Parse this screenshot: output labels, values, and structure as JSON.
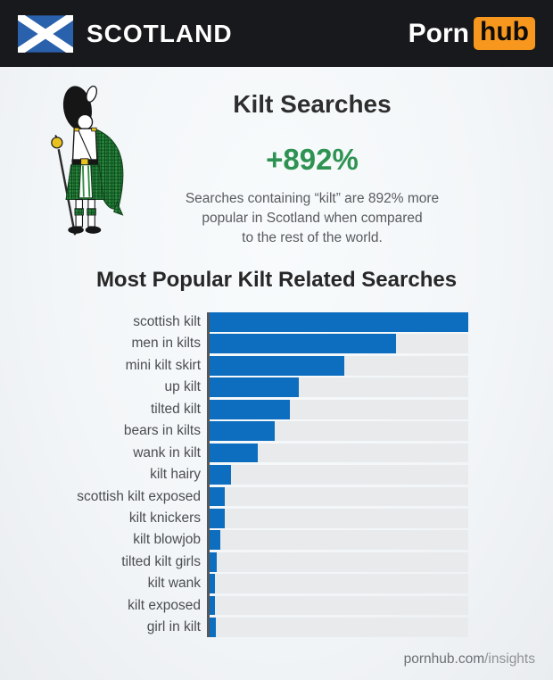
{
  "header": {
    "region": "SCOTLAND",
    "brand_porn": "Porn",
    "brand_hub": "hub"
  },
  "hero": {
    "title": "Kilt Searches",
    "stat": "+892%",
    "description_lines": [
      "Searches containing “kilt” are 892% more",
      "popular in Scotland when compared",
      "to the rest of the world."
    ]
  },
  "chart_heading": "Most Popular Kilt Related Searches",
  "chart_data": {
    "type": "bar",
    "orientation": "horizontal",
    "title": "Most Popular Kilt Related Searches",
    "value_basis": "relative bar length, percent of longest bar (no numeric axis shown)",
    "categories": [
      "scottish kilt",
      "men in kilts",
      "mini kilt skirt",
      "up kilt",
      "tilted kilt",
      "bears in kilts",
      "wank in kilt",
      "kilt hairy",
      "scottish kilt exposed",
      "kilt knickers",
      "kilt blowjob",
      "tilted kilt girls",
      "kilt wank",
      "kilt exposed",
      "girl in kilt"
    ],
    "values": [
      100,
      72,
      52,
      34.5,
      31,
      25,
      18.5,
      8.2,
      6,
      6,
      4,
      2.8,
      2.1,
      2.1,
      2.5
    ],
    "bar_color": "#0d6ebf",
    "track_color": "#e8eaec",
    "grid": false,
    "legend": false
  },
  "footer": {
    "site": "pornhub.com",
    "path": "/insights"
  },
  "colors": {
    "header_bg": "#18191c",
    "brand_orange": "#f7971d",
    "flag_blue": "#2a61ac",
    "stat_green": "#2e9352",
    "bar_blue": "#0d6ebf",
    "track_gray": "#e8eaec",
    "axis_gray": "#56575b"
  }
}
